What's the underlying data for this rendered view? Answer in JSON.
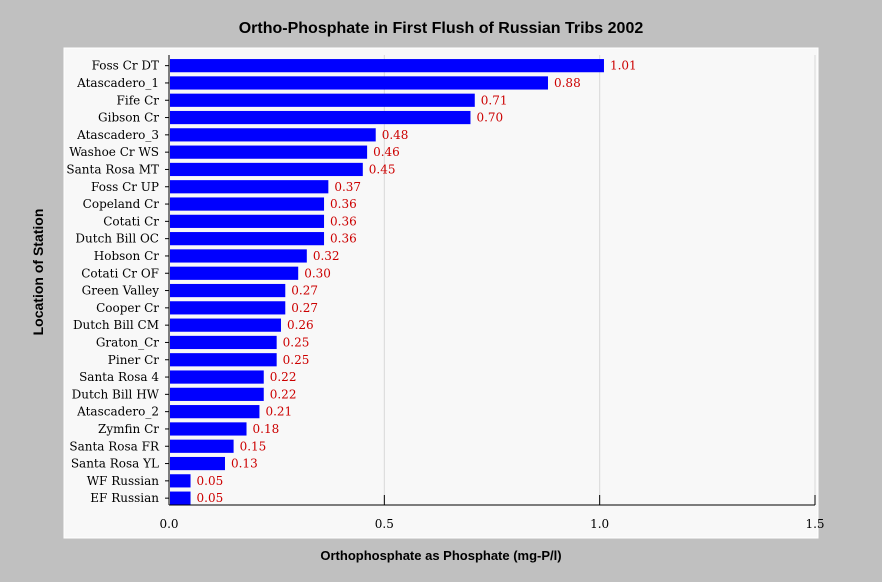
{
  "chart_data": {
    "type": "bar",
    "orientation": "horizontal",
    "title": "Ortho-Phosphate in First Flush of Russian Tribs 2002",
    "xlabel": "Orthophosphate as Phosphate (mg-P/l)",
    "ylabel": "Location of Station",
    "xlim": [
      0,
      1.5
    ],
    "xticks": [
      "0.0",
      "0.5",
      "1.0",
      "1.5"
    ],
    "grid": true,
    "bar_color": "#0000ff",
    "value_label_color": "#cc0000",
    "categories": [
      "Foss Cr DT",
      "Atascadero_1",
      "Fife Cr",
      "Gibson Cr",
      "Atascadero_3",
      "Washoe Cr WS",
      "Santa Rosa MT",
      "Foss Cr UP",
      "Copeland Cr",
      "Cotati Cr",
      "Dutch Bill OC",
      "Hobson Cr",
      "Cotati Cr OF",
      "Green Valley",
      "Cooper Cr",
      "Dutch Bill CM",
      "Graton_Cr",
      "Piner Cr",
      "Santa Rosa 4",
      "Dutch Bill HW",
      "Atascadero_2",
      "Zymfin Cr",
      "Santa Rosa FR",
      "Santa Rosa YL",
      "WF Russian",
      "EF Russian"
    ],
    "values": [
      1.01,
      0.88,
      0.71,
      0.7,
      0.48,
      0.46,
      0.45,
      0.37,
      0.36,
      0.36,
      0.36,
      0.32,
      0.3,
      0.27,
      0.27,
      0.26,
      0.25,
      0.25,
      0.22,
      0.22,
      0.21,
      0.18,
      0.15,
      0.13,
      0.05,
      0.05
    ],
    "value_labels": [
      "1.01",
      "0.88",
      "0.71",
      "0.70",
      "0.48",
      "0.46",
      "0.45",
      "0.37",
      "0.36",
      "0.36",
      "0.36",
      "0.32",
      "0.30",
      "0.27",
      "0.27",
      "0.26",
      "0.25",
      "0.25",
      "0.22",
      "0.22",
      "0.21",
      "0.18",
      "0.15",
      "0.13",
      "0.05",
      "0.05"
    ]
  }
}
